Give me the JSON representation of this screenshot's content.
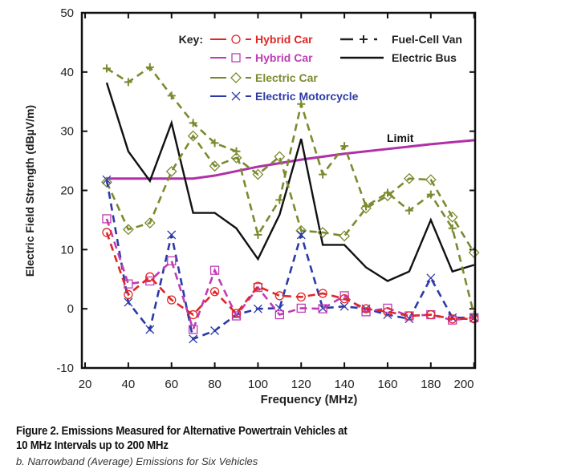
{
  "chart_data": {
    "type": "line",
    "xlabel": "Frequency (MHz)",
    "ylabel": "Electric Field Strength (dBµV/m)",
    "xlim": [
      18.5,
      200.5
    ],
    "ylim": [
      -10,
      50
    ],
    "xticks": [
      20,
      40,
      60,
      80,
      100,
      120,
      140,
      160,
      180,
      200
    ],
    "yticks": [
      -10,
      0,
      10,
      20,
      30,
      40,
      50
    ],
    "grid": false,
    "legend_title": "Key:",
    "legend_placement": "top",
    "x": [
      30,
      40,
      50,
      60,
      70,
      80,
      90,
      100,
      110,
      120,
      130,
      140,
      150,
      160,
      170,
      180,
      190,
      200
    ],
    "series": [
      {
        "name": "Hybrid Car",
        "color": "#e02626",
        "marker": "circle",
        "dash": true,
        "values": [
          12.9,
          2.4,
          5.4,
          1.5,
          -1.0,
          2.9,
          -0.8,
          3.8,
          2.2,
          2.0,
          2.6,
          1.7,
          0.0,
          -0.5,
          -1.2,
          -1.0,
          -1.7,
          -1.7
        ]
      },
      {
        "name": "Hybrid Car",
        "color": "#c03cb4",
        "marker": "square",
        "dash": true,
        "values": [
          15.2,
          4.2,
          4.7,
          8.1,
          -3.5,
          6.5,
          -1.2,
          3.6,
          -1.0,
          0.1,
          0.0,
          2.2,
          -0.5,
          0.1,
          -1.2,
          -1.0,
          -1.9,
          -1.5
        ]
      },
      {
        "name": "Electric Car",
        "color": "#7b8a2e",
        "marker": "diamond",
        "dash": true,
        "values": [
          21.4,
          13.4,
          14.5,
          23.2,
          29.2,
          24.1,
          25.5,
          22.7,
          25.7,
          13.2,
          12.9,
          12.3,
          17.0,
          19.1,
          22.0,
          21.8,
          15.5,
          9.5
        ]
      },
      {
        "name": "Electric Motorcycle",
        "color": "#2b3aa8",
        "marker": "x",
        "dash": true,
        "values": [
          21.8,
          1.1,
          -3.5,
          12.5,
          -5.1,
          -3.7,
          -1.0,
          0.0,
          0.1,
          12.5,
          0.1,
          0.4,
          0.0,
          -1.0,
          -1.7,
          5.2,
          -1.5,
          -1.5
        ]
      },
      {
        "name": "Fuel-Cell Van",
        "color": "#7b8a2e",
        "legend_color": "#222222",
        "marker": "plus",
        "dash": true,
        "values": [
          40.6,
          38.3,
          40.8,
          36.0,
          31.4,
          28.0,
          26.6,
          12.5,
          18.4,
          34.6,
          22.7,
          27.5,
          17.3,
          19.6,
          16.6,
          19.3,
          13.6,
          -1.0
        ]
      },
      {
        "name": "Electric Bus",
        "color": "#111111",
        "marker": "none",
        "dash": false,
        "values": [
          38.2,
          26.6,
          21.6,
          31.4,
          16.2,
          16.2,
          13.6,
          8.4,
          15.9,
          28.7,
          10.8,
          10.8,
          7.0,
          4.7,
          6.3,
          15.0,
          6.3,
          7.4
        ]
      }
    ],
    "limit": {
      "label": "Limit",
      "color": "#b030a8",
      "x": [
        30,
        70,
        80,
        100,
        120,
        140,
        160,
        180,
        200.5
      ],
      "values": [
        22.0,
        22.0,
        22.5,
        24.0,
        25.2,
        26.2,
        27.0,
        27.8,
        28.5
      ]
    }
  },
  "caption": {
    "line1": "Figure 2. Emissions Measured for Alternative Powertrain Vehicles at",
    "line2": "10 MHz Intervals up to 200 MHz",
    "subtitle": "b. Narrowband (Average) Emissions for Six Vehicles"
  }
}
